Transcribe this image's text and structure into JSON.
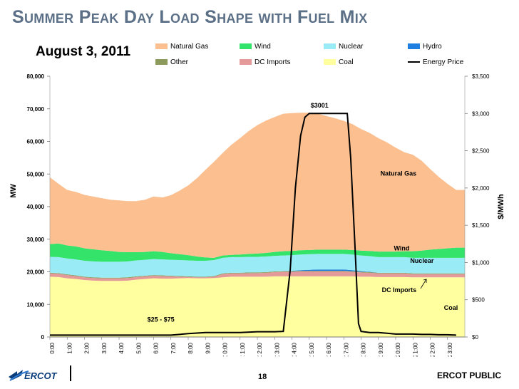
{
  "slide": {
    "title": "Summer Peak Day Load Shape with Fuel Mix",
    "date_label": "August 3, 2011",
    "page_number": "18",
    "footer_label": "ERCOT PUBLIC",
    "logo_text": "ERCOT"
  },
  "colors": {
    "natural_gas": "#fbbf90",
    "wind": "#33e36a",
    "nuclear": "#99ebf5",
    "hydro": "#1f7fe0",
    "other": "#8c9a5b",
    "dc_imports": "#e59a9a",
    "coal": "#ffffa0",
    "energy_price": "#000000",
    "title": "#5b6f86"
  },
  "legend": [
    {
      "key": "natural_gas",
      "label": "Natural Gas",
      "kind": "area"
    },
    {
      "key": "wind",
      "label": "Wind",
      "kind": "area"
    },
    {
      "key": "nuclear",
      "label": "Nuclear",
      "kind": "area"
    },
    {
      "key": "hydro",
      "label": "Hydro",
      "kind": "area"
    },
    {
      "key": "other",
      "label": "Other",
      "kind": "area"
    },
    {
      "key": "dc_imports",
      "label": "DC Imports",
      "kind": "area"
    },
    {
      "key": "coal",
      "label": "Coal",
      "kind": "area"
    },
    {
      "key": "energy_price",
      "label": "Energy Price",
      "kind": "line"
    }
  ],
  "chart_data": {
    "type": "area",
    "title": "Summer Peak Day Load Shape with Fuel Mix",
    "subtitle": "August 3, 2011",
    "xlabel": "",
    "ylabel": "MW",
    "y2label": "$/MWh",
    "ylim": [
      0,
      80000
    ],
    "y2lim": [
      0,
      3500
    ],
    "x_ticks": [
      "0:00",
      "1:00",
      "2:00",
      "3:00",
      "4:00",
      "5:00",
      "6:00",
      "7:00",
      "8:00",
      "9:00",
      "10:00",
      "11:00",
      "12:00",
      "13:00",
      "14:00",
      "15:00",
      "16:00",
      "17:00",
      "18:00",
      "19:00",
      "20:00",
      "21:00",
      "22:00",
      "23:00"
    ],
    "y_ticks": [
      "0",
      "10,000",
      "20,000",
      "30,000",
      "40,000",
      "50,000",
      "60,000",
      "70,000",
      "80,000"
    ],
    "y2_ticks": [
      "$0",
      "$500",
      "$1,000",
      "$1,500",
      "$2,000",
      "$2,500",
      "$3,000",
      "$3,500"
    ],
    "y_tick_values": [
      0,
      10000,
      20000,
      30000,
      40000,
      50000,
      60000,
      70000,
      80000
    ],
    "y2_tick_values": [
      0,
      500,
      1000,
      1500,
      2000,
      2500,
      3000,
      3500
    ],
    "x": [
      0,
      0.5,
      1,
      1.5,
      2,
      2.5,
      3,
      3.5,
      4,
      4.5,
      5,
      5.5,
      6,
      6.5,
      7,
      7.5,
      8,
      8.5,
      9,
      9.5,
      10,
      10.5,
      11,
      11.5,
      12,
      12.5,
      13,
      13.5,
      14,
      14.5,
      15,
      15.5,
      16,
      16.5,
      17,
      17.5,
      18,
      18.5,
      19,
      19.5,
      20,
      20.5,
      21,
      21.5,
      22,
      22.5,
      23,
      23.5
    ],
    "series": [
      {
        "name": "Coal",
        "color_key": "coal",
        "values": [
          18500,
          18400,
          18000,
          17800,
          17500,
          17300,
          17200,
          17200,
          17200,
          17300,
          17600,
          17800,
          18000,
          17900,
          17900,
          18000,
          18100,
          18000,
          18000,
          18100,
          18300,
          18500,
          18500,
          18500,
          18500,
          18500,
          18600,
          18600,
          18600,
          18600,
          18600,
          18600,
          18600,
          18600,
          18600,
          18600,
          18500,
          18500,
          18400,
          18400,
          18400,
          18400,
          18300,
          18300,
          18300,
          18300,
          18300,
          18300
        ]
      },
      {
        "name": "DC Imports",
        "color_key": "dc_imports",
        "values": [
          1000,
          1000,
          1000,
          900,
          800,
          800,
          800,
          800,
          800,
          800,
          800,
          800,
          800,
          800,
          700,
          500,
          300,
          300,
          300,
          400,
          1000,
          1000,
          1000,
          1100,
          1100,
          1200,
          1300,
          1400,
          1400,
          1500,
          1500,
          1500,
          1500,
          1500,
          1500,
          1400,
          1300,
          1200,
          1100,
          1100,
          1100,
          1100,
          1000,
          1000,
          1000,
          1000,
          1000,
          1000
        ]
      },
      {
        "name": "Other",
        "color_key": "other",
        "values": [
          200,
          200,
          200,
          200,
          200,
          200,
          200,
          200,
          200,
          200,
          200,
          200,
          200,
          200,
          200,
          200,
          200,
          200,
          200,
          200,
          200,
          200,
          200,
          200,
          200,
          200,
          200,
          200,
          200,
          200,
          200,
          200,
          200,
          200,
          200,
          200,
          200,
          200,
          200,
          200,
          200,
          200,
          200,
          200,
          200,
          200,
          200,
          200
        ]
      },
      {
        "name": "Hydro",
        "color_key": "hydro",
        "values": [
          0,
          0,
          0,
          0,
          0,
          0,
          0,
          0,
          0,
          0,
          0,
          0,
          0,
          0,
          0,
          0,
          0,
          0,
          0,
          0,
          0,
          0,
          0,
          0,
          0,
          0,
          0,
          0,
          100,
          200,
          300,
          400,
          400,
          400,
          400,
          300,
          200,
          100,
          0,
          0,
          0,
          0,
          0,
          0,
          0,
          0,
          0,
          0
        ]
      },
      {
        "name": "Nuclear",
        "color_key": "nuclear",
        "values": [
          4900,
          4900,
          4900,
          4900,
          4900,
          4900,
          4900,
          4900,
          4900,
          4900,
          4900,
          4900,
          4900,
          4900,
          4900,
          4900,
          4900,
          4900,
          4900,
          4900,
          4800,
          4800,
          4800,
          4800,
          4800,
          4800,
          4800,
          4800,
          4800,
          4800,
          4800,
          4800,
          4800,
          4800,
          4800,
          4800,
          4800,
          4800,
          4800,
          4800,
          4800,
          4800,
          4800,
          4800,
          4800,
          4800,
          4800,
          4800
        ]
      },
      {
        "name": "Wind",
        "color_key": "wind",
        "values": [
          3900,
          4200,
          4000,
          4000,
          3800,
          3700,
          3500,
          3300,
          3000,
          2800,
          2500,
          2400,
          2400,
          2300,
          2000,
          1800,
          1600,
          1300,
          1000,
          700,
          700,
          700,
          800,
          900,
          1000,
          1100,
          1200,
          1300,
          1300,
          1300,
          1300,
          1300,
          1300,
          1300,
          1300,
          1400,
          1500,
          1600,
          1700,
          1700,
          1700,
          1800,
          2000,
          2200,
          2500,
          2700,
          2900,
          3100
        ]
      },
      {
        "name": "Natural Gas",
        "color_key": "natural_gas",
        "values": [
          20500,
          18300,
          17000,
          16700,
          16400,
          16200,
          16000,
          15700,
          15800,
          15700,
          15700,
          16000,
          16800,
          16700,
          17800,
          19500,
          21400,
          24000,
          26900,
          29500,
          31500,
          33800,
          35700,
          37700,
          39400,
          40600,
          41400,
          42200,
          42300,
          42200,
          42100,
          41700,
          41000,
          40300,
          39500,
          38600,
          37300,
          36200,
          34800,
          33500,
          31900,
          30400,
          29600,
          27600,
          24700,
          22100,
          19800,
          17700
        ]
      }
    ],
    "energy_price": {
      "name": "Energy Price",
      "x": [
        0,
        1,
        2,
        3,
        4,
        5,
        6,
        7,
        8,
        9,
        10,
        11,
        12,
        13,
        13.5,
        13.9,
        14.2,
        14.5,
        14.75,
        15,
        15.5,
        16,
        16.5,
        17,
        17.2,
        17.4,
        17.65,
        17.85,
        18,
        18.5,
        19,
        19.5,
        20,
        20.5,
        21,
        21.5,
        22,
        22.5,
        23,
        23.5
      ],
      "values": [
        25,
        25,
        25,
        25,
        25,
        25,
        25,
        25,
        45,
        60,
        60,
        60,
        70,
        70,
        75,
        900,
        2000,
        2700,
        2950,
        3000,
        3000,
        3000,
        3000,
        3000,
        3000,
        2400,
        1200,
        180,
        75,
        60,
        60,
        50,
        40,
        40,
        40,
        35,
        35,
        30,
        30,
        25
      ]
    },
    "annotations": [
      {
        "text": "$3001",
        "x": 15.6,
        "y2": 3080,
        "anchor": "middle"
      },
      {
        "text": "$25 - $75",
        "x": 7.2,
        "y2": 205,
        "anchor": "end"
      },
      {
        "text": "Natural Gas",
        "x": 21.2,
        "y": 49500,
        "anchor": "end"
      },
      {
        "text": "Wind",
        "x": 20.8,
        "y": 26600,
        "anchor": "end"
      },
      {
        "text": "Nuclear",
        "x": 22.2,
        "y": 22700,
        "anchor": "end"
      },
      {
        "text": "DC Imports",
        "x": 21.2,
        "y": 13800,
        "anchor": "end"
      },
      {
        "text": "Coal",
        "x": 23.6,
        "y": 8300,
        "anchor": "end"
      }
    ],
    "grid": false,
    "legend_position": "top"
  }
}
